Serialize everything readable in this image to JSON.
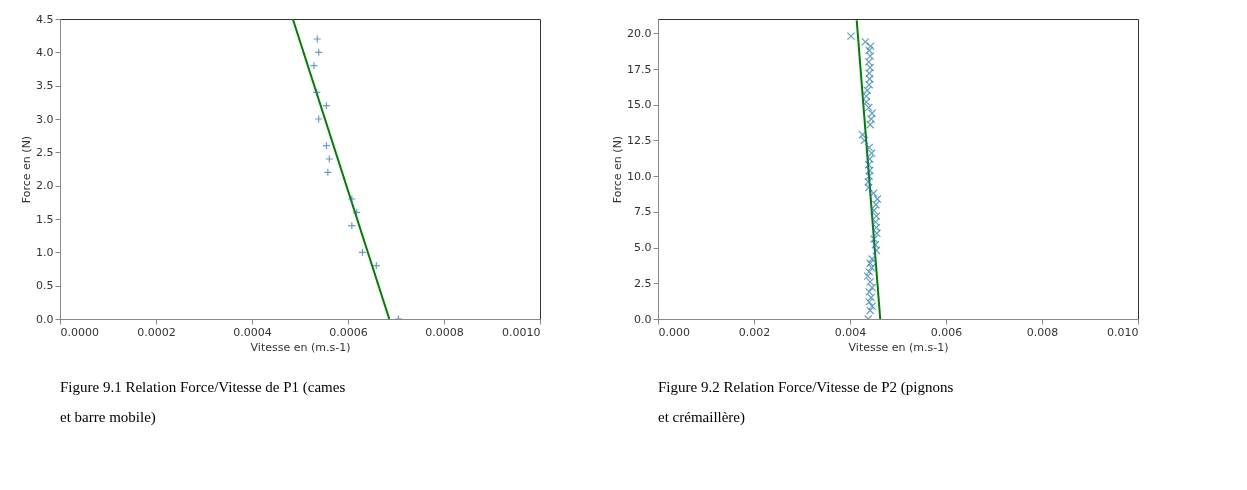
{
  "chart_data": [
    {
      "type": "scatter",
      "xlabel": "Vitesse en (m.s-1)",
      "ylabel": "Force en (N)",
      "grid": false,
      "xlim": [
        0,
        0.001
      ],
      "ylim": [
        0,
        4.5
      ],
      "xticks": [
        {
          "value": 0,
          "label": "0.0000"
        },
        {
          "value": 0.0002,
          "label": "0.0002"
        },
        {
          "value": 0.0004,
          "label": "0.0004"
        },
        {
          "value": 0.0006,
          "label": "0.0006"
        },
        {
          "value": 0.0008,
          "label": "0.0008"
        },
        {
          "value": 0.001,
          "label": "0.0010"
        }
      ],
      "yticks": [
        {
          "value": 0,
          "label": "0.0"
        },
        0.5,
        {
          "value": 1,
          "label": "1.0"
        },
        1.5,
        {
          "value": 2,
          "label": "2.0"
        },
        2.5,
        {
          "value": 3,
          "label": "3.0"
        },
        3.5,
        {
          "value": 4,
          "label": "4.0"
        },
        4.5
      ],
      "series": [
        {
          "marker": "cross",
          "color": "#1f77b4",
          "x": [
            0.000536,
            0.000539,
            0.000529,
            0.000535,
            0.000555,
            0.000539,
            0.000555,
            0.000561,
            0.000558,
            0.000608,
            0.000618,
            0.000608,
            0.00063,
            0.000659,
            0.000705
          ],
          "values": [
            4.2,
            4.0,
            3.8,
            3.4,
            3.2,
            3.0,
            2.6,
            2.4,
            2.2,
            1.8,
            1.6,
            1.4,
            1.0,
            0.8,
            0.0
          ]
        },
        {
          "type": "line",
          "color": "#008000",
          "x": [
            0.000686,
            0.000485
          ],
          "values": [
            0,
            4.5
          ]
        }
      ],
      "annotations": [
        "Figure 9.1 Relation Force/Vitesse de P1 (cames et barre mobile)"
      ]
    },
    {
      "type": "scatter",
      "xlabel": "Vitesse en (m.s-1)",
      "ylabel": "Force en (N)",
      "grid": false,
      "xlim": [
        0,
        0.01
      ],
      "ylim": [
        0,
        21
      ],
      "xticks": [
        {
          "value": 0,
          "label": "0.000"
        },
        {
          "value": 0.002,
          "label": "0.002"
        },
        {
          "value": 0.004,
          "label": "0.004"
        },
        {
          "value": 0.006,
          "label": "0.006"
        },
        {
          "value": 0.008,
          "label": "0.008"
        },
        {
          "value": 0.01,
          "label": "0.010"
        }
      ],
      "yticks": [
        {
          "value": 0,
          "label": "0.0"
        },
        2.5,
        {
          "value": 5,
          "label": "5.0"
        },
        7.5,
        {
          "value": 10,
          "label": "10.0"
        },
        12.5,
        {
          "value": 15,
          "label": "15.0"
        },
        17.5,
        {
          "value": 20,
          "label": "20.0"
        }
      ],
      "series": [
        {
          "marker": "x",
          "color": "#1f77b4",
          "x": [
            0.00438,
            0.00442,
            0.00446,
            0.0044,
            0.00444,
            0.0044,
            0.00446,
            0.00442,
            0.00437,
            0.0044,
            0.00445,
            0.00442,
            0.00446,
            0.00455,
            0.00453,
            0.0045,
            0.00456,
            0.00455,
            0.00453,
            0.00455,
            0.0045,
            0.00454,
            0.00457,
            0.00449,
            0.00439,
            0.00438,
            0.0044,
            0.00441,
            0.00439,
            0.00441,
            0.00445,
            0.0044,
            0.0043,
            0.00426,
            0.00442,
            0.00444,
            0.00446,
            0.00439,
            0.00434,
            0.00434,
            0.00436,
            0.0044,
            0.00441,
            0.0044,
            0.00442,
            0.00439,
            0.00442,
            0.0044,
            0.00443,
            0.00432,
            0.00402
          ],
          "values": [
            0.0,
            0.6,
            0.9,
            1.2,
            1.5,
            1.9,
            2.2,
            2.6,
            3.0,
            3.3,
            3.6,
            3.9,
            4.2,
            4.8,
            5.2,
            5.6,
            6.0,
            6.4,
            6.8,
            7.2,
            7.6,
            8.0,
            8.4,
            8.8,
            9.2,
            9.6,
            10.0,
            10.4,
            10.8,
            11.2,
            11.6,
            12.0,
            12.5,
            12.9,
            13.6,
            14.0,
            14.4,
            14.8,
            15.2,
            15.6,
            16.0,
            16.4,
            16.8,
            17.2,
            17.6,
            18.0,
            18.4,
            18.8,
            19.1,
            19.4,
            19.8
          ]
        },
        {
          "type": "line",
          "color": "#008000",
          "x": [
            0.00463,
            0.00414
          ],
          "values": [
            0,
            20.9
          ]
        }
      ],
      "annotations": [
        "Figure 9.2 Relation Force/Vitesse de P2 (pignons et crémaillère)"
      ]
    }
  ]
}
